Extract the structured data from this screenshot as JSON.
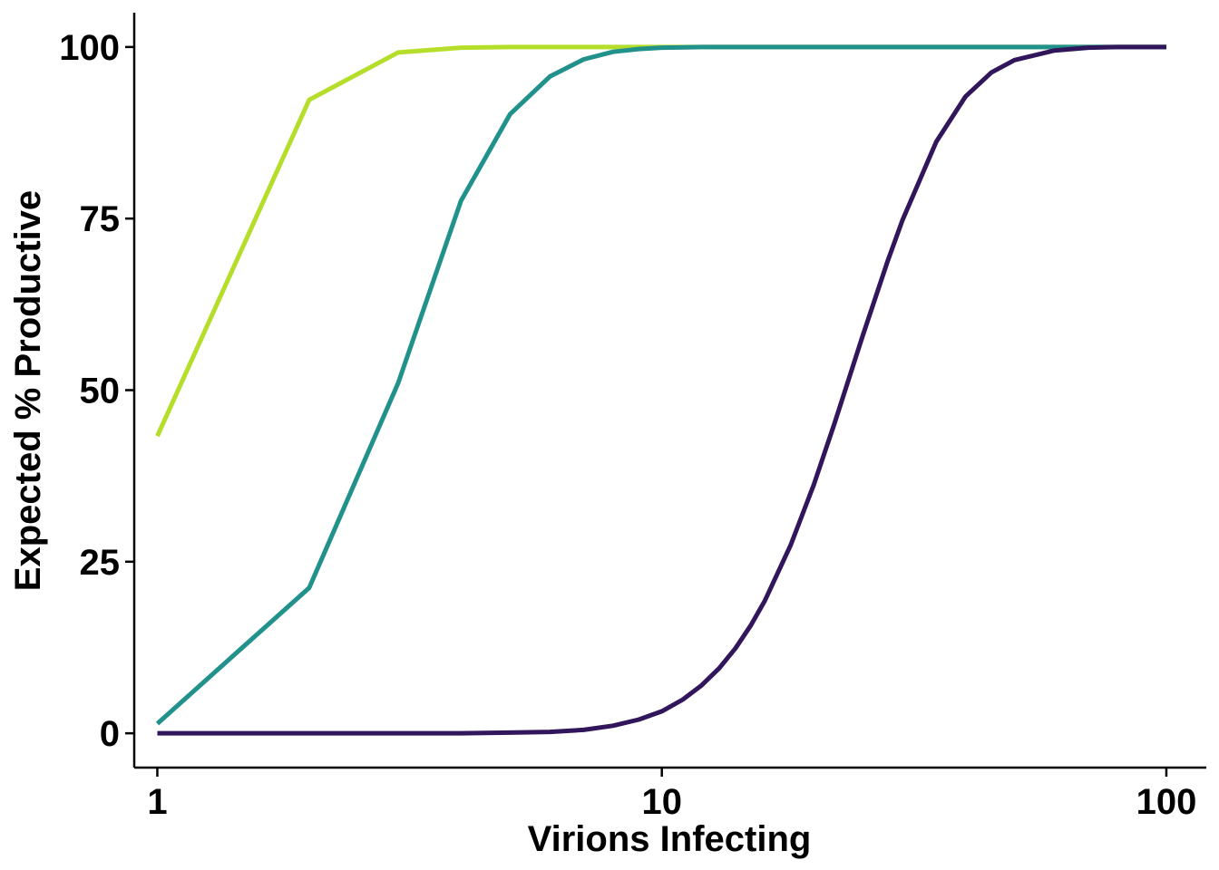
{
  "chart_data": {
    "type": "line",
    "title": "",
    "xlabel": "Virions Infecting",
    "ylabel": "Expected % Productive",
    "x_scale": "log10",
    "xlim": [
      0.9,
      120
    ],
    "ylim": [
      -5,
      105
    ],
    "x_ticks": [
      1,
      10,
      100
    ],
    "x_tick_labels": [
      "1",
      "10",
      "100"
    ],
    "y_ticks": [
      0,
      25,
      50,
      75,
      100
    ],
    "y_tick_labels": [
      "0",
      "25",
      "50",
      "75",
      "100"
    ],
    "grid": false,
    "legend": "none",
    "series": [
      {
        "color": "#B5DE2B",
        "x": [
          1,
          2,
          3,
          4,
          5,
          6,
          8,
          10,
          20,
          50,
          100
        ],
        "y": [
          43.3,
          92.3,
          99.2,
          99.9,
          100,
          100,
          100,
          100,
          100,
          100,
          100
        ]
      },
      {
        "color": "#21918C",
        "x": [
          1,
          2,
          3,
          4,
          5,
          6,
          7,
          8,
          9,
          10,
          12,
          15,
          20,
          50,
          100
        ],
        "y": [
          1.4,
          21.2,
          51,
          77.6,
          90.2,
          95.7,
          98.2,
          99.3,
          99.7,
          99.9,
          100,
          100,
          100,
          100,
          100
        ]
      },
      {
        "color": "#31165B",
        "x": [
          1,
          2,
          3,
          4,
          5,
          6,
          7,
          8,
          9,
          10,
          11,
          12,
          13,
          14,
          15,
          16,
          18,
          20,
          22,
          25,
          28,
          30,
          35,
          40,
          45,
          50,
          60,
          70,
          80,
          100
        ],
        "y": [
          0,
          0,
          0,
          0,
          0.1,
          0.2,
          0.5,
          1.1,
          2,
          3.2,
          4.9,
          7,
          9.5,
          12.4,
          15.7,
          19.3,
          27.4,
          36.2,
          45.2,
          57.9,
          68.7,
          74.8,
          86.2,
          92.8,
          96.3,
          98.1,
          99.5,
          99.9,
          100,
          100
        ]
      }
    ]
  }
}
